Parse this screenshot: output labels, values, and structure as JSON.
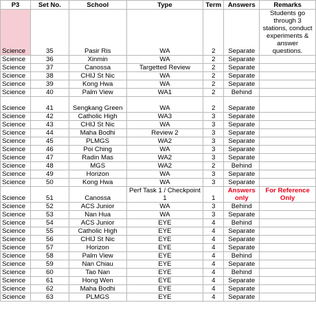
{
  "headers": [
    "P3",
    "Set No.",
    "School",
    "Type",
    "Term",
    "Answers",
    "Remarks"
  ],
  "rows": [
    {
      "subject": "Science",
      "set": "35",
      "school": "Pasir Ris",
      "type": "WA",
      "term": "2",
      "answers": "Separate",
      "remarks": "Students go through 3 stations, conduct experiments & answer questions."
    },
    {
      "subject": "Science",
      "set": "36",
      "school": "Xinmin",
      "type": "WA",
      "term": "2",
      "answers": "Separate",
      "remarks": ""
    },
    {
      "subject": "Science",
      "set": "37",
      "school": "Canossa",
      "type": "Targetted Review",
      "term": "2",
      "answers": "Separate",
      "remarks": ""
    },
    {
      "subject": "Science",
      "set": "38",
      "school": "CHIJ St Nic",
      "type": "WA",
      "term": "2",
      "answers": "Separate",
      "remarks": ""
    },
    {
      "subject": "Science",
      "set": "39",
      "school": "Kong Hwa",
      "type": "WA",
      "term": "2",
      "answers": "Separate",
      "remarks": ""
    },
    {
      "subject": "Science",
      "set": "40",
      "school": "Palm View",
      "type": "WA1",
      "term": "2",
      "answers": "Behind",
      "remarks": ""
    },
    {
      "subject": "Science",
      "set": "41",
      "school": "Sengkang Green",
      "type": "WA",
      "term": "2",
      "answers": "Separate",
      "remarks": ""
    },
    {
      "subject": "Science",
      "set": "42",
      "school": "Catholic High",
      "type": "WA3",
      "term": "3",
      "answers": "Separate",
      "remarks": ""
    },
    {
      "subject": "Science",
      "set": "43",
      "school": "CHIJ St Nic",
      "type": "WA",
      "term": "3",
      "answers": "Separate",
      "remarks": ""
    },
    {
      "subject": "Science",
      "set": "44",
      "school": "Maha Bodhi",
      "type": "Review 2",
      "term": "3",
      "answers": "Separate",
      "remarks": ""
    },
    {
      "subject": "Science",
      "set": "45",
      "school": "PLMGS",
      "type": "WA2",
      "term": "3",
      "answers": "Separate",
      "remarks": ""
    },
    {
      "subject": "Science",
      "set": "46",
      "school": "Poi Ching",
      "type": "WA",
      "term": "3",
      "answers": "Separate",
      "remarks": ""
    },
    {
      "subject": "Science",
      "set": "47",
      "school": "Radin Mas",
      "type": "WA2",
      "term": "3",
      "answers": "Separate",
      "remarks": ""
    },
    {
      "subject": "Science",
      "set": "48",
      "school": "MGS",
      "type": "WA2",
      "term": "2",
      "answers": "Behind",
      "remarks": ""
    },
    {
      "subject": "Science",
      "set": "49",
      "school": "Horizon",
      "type": "WA",
      "term": "3",
      "answers": "Separate",
      "remarks": ""
    },
    {
      "subject": "Science",
      "set": "50",
      "school": "Kong Hwa",
      "type": "WA",
      "term": "3",
      "answers": "Separate",
      "remarks": ""
    },
    {
      "subject": "Science",
      "set": "51",
      "school": "Canossa",
      "type": "Perf Task 1 / Checkpoint 1",
      "term": "1",
      "answers": "Answers only",
      "remarks": "For Reference Only"
    },
    {
      "subject": "Science",
      "set": "52",
      "school": "ACS Junior",
      "type": "WA",
      "term": "3",
      "answers": "Behind",
      "remarks": ""
    },
    {
      "subject": "Science",
      "set": "53",
      "school": "Nan Hua",
      "type": "WA",
      "term": "3",
      "answers": "Separate",
      "remarks": ""
    },
    {
      "subject": "Science",
      "set": "54",
      "school": "ACS Junior",
      "type": "EYE",
      "term": "4",
      "answers": "Behind",
      "remarks": ""
    },
    {
      "subject": "Science",
      "set": "55",
      "school": "Catholic High",
      "type": "EYE",
      "term": "4",
      "answers": "Separate",
      "remarks": ""
    },
    {
      "subject": "Science",
      "set": "56",
      "school": "CHIJ St Nic",
      "type": "EYE",
      "term": "4",
      "answers": "Separate",
      "remarks": ""
    },
    {
      "subject": "Science",
      "set": "57",
      "school": "Horizon",
      "type": "EYE",
      "term": "4",
      "answers": "Separate",
      "remarks": ""
    },
    {
      "subject": "Science",
      "set": "58",
      "school": "Palm View",
      "type": "EYE",
      "term": "4",
      "answers": "Behind",
      "remarks": ""
    },
    {
      "subject": "Science",
      "set": "59",
      "school": "Nan Chiau",
      "type": "EYE",
      "term": "4",
      "answers": "Separate",
      "remarks": ""
    },
    {
      "subject": "Science",
      "set": "60",
      "school": "Tao Nan",
      "type": "EYE",
      "term": "4",
      "answers": "Behind",
      "remarks": ""
    },
    {
      "subject": "Science",
      "set": "61",
      "school": "Hong Wen",
      "type": "EYE",
      "term": "4",
      "answers": "Separate",
      "remarks": ""
    },
    {
      "subject": "Science",
      "set": "62",
      "school": "Maha Bodhi",
      "type": "EYE",
      "term": "4",
      "answers": "Separate",
      "remarks": ""
    },
    {
      "subject": "Science",
      "set": "63",
      "school": "PLMGS",
      "type": "EYE",
      "term": "4",
      "answers": "Separate",
      "remarks": ""
    }
  ],
  "colors": {
    "highlight_pink": "#f6cdd4",
    "alert_red": "#e8001a",
    "grid": "#b7b7b7"
  }
}
